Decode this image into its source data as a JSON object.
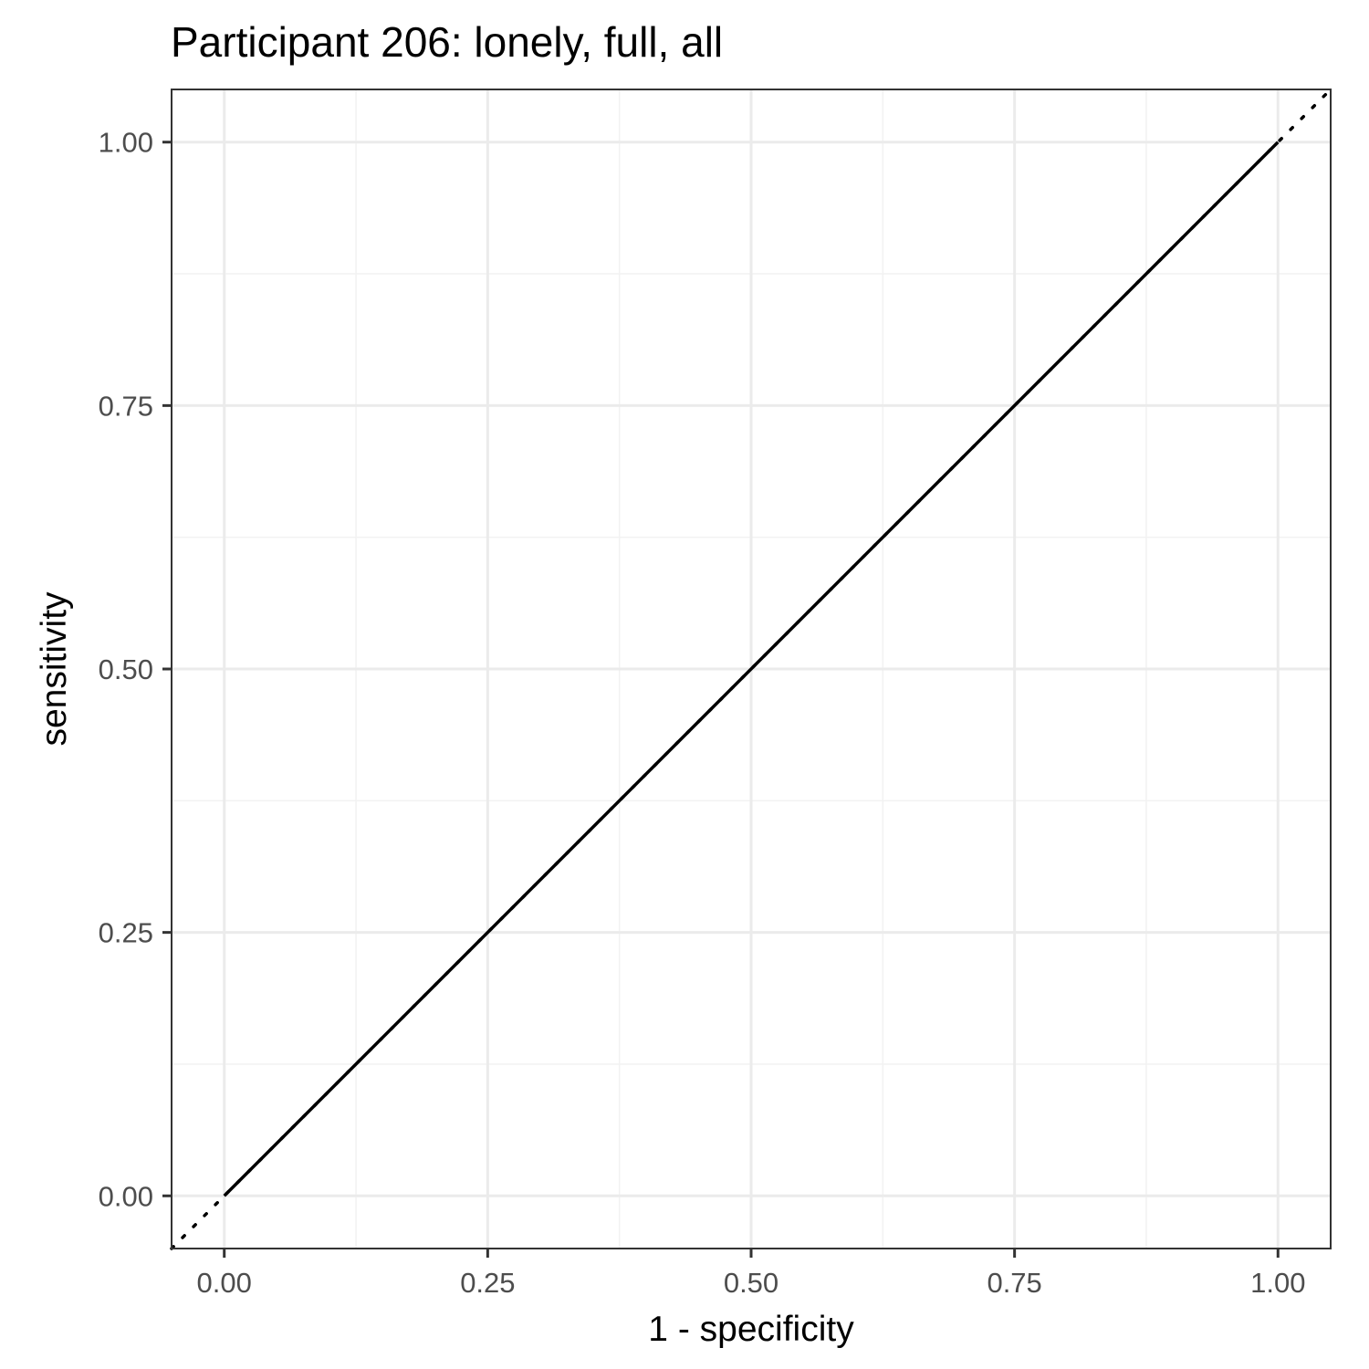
{
  "chart_data": {
    "type": "line",
    "title": "Participant 206: lonely, full, all",
    "xlabel": "1 - specificity",
    "ylabel": "sensitivity",
    "xlim": [
      -0.05,
      1.05
    ],
    "ylim": [
      -0.05,
      1.05
    ],
    "x_ticks": [
      0.0,
      0.25,
      0.5,
      0.75,
      1.0
    ],
    "x_tick_labels": [
      "0.00",
      "0.25",
      "0.50",
      "0.75",
      "1.00"
    ],
    "y_ticks": [
      0.0,
      0.25,
      0.5,
      0.75,
      1.0
    ],
    "y_tick_labels": [
      "0.00",
      "0.25",
      "0.50",
      "0.75",
      "1.00"
    ],
    "x_minor_ticks": [
      0.125,
      0.375,
      0.625,
      0.875
    ],
    "y_minor_ticks": [
      0.125,
      0.375,
      0.625,
      0.875
    ],
    "grid": true,
    "series": [
      {
        "x": [
          0.0,
          1.0
        ],
        "y": [
          0.0,
          1.0
        ],
        "style": "solid",
        "color": "#000000"
      }
    ],
    "reference_line": {
      "x": [
        -0.05,
        1.05
      ],
      "y": [
        -0.05,
        1.05
      ],
      "style": "dotted",
      "color": "#000000"
    },
    "colors": {
      "background": "#ffffff",
      "panel_border": "#333333",
      "grid_major": "#ebebeb",
      "grid_minor": "#f2f2f2",
      "tick_mark": "#333333"
    }
  }
}
